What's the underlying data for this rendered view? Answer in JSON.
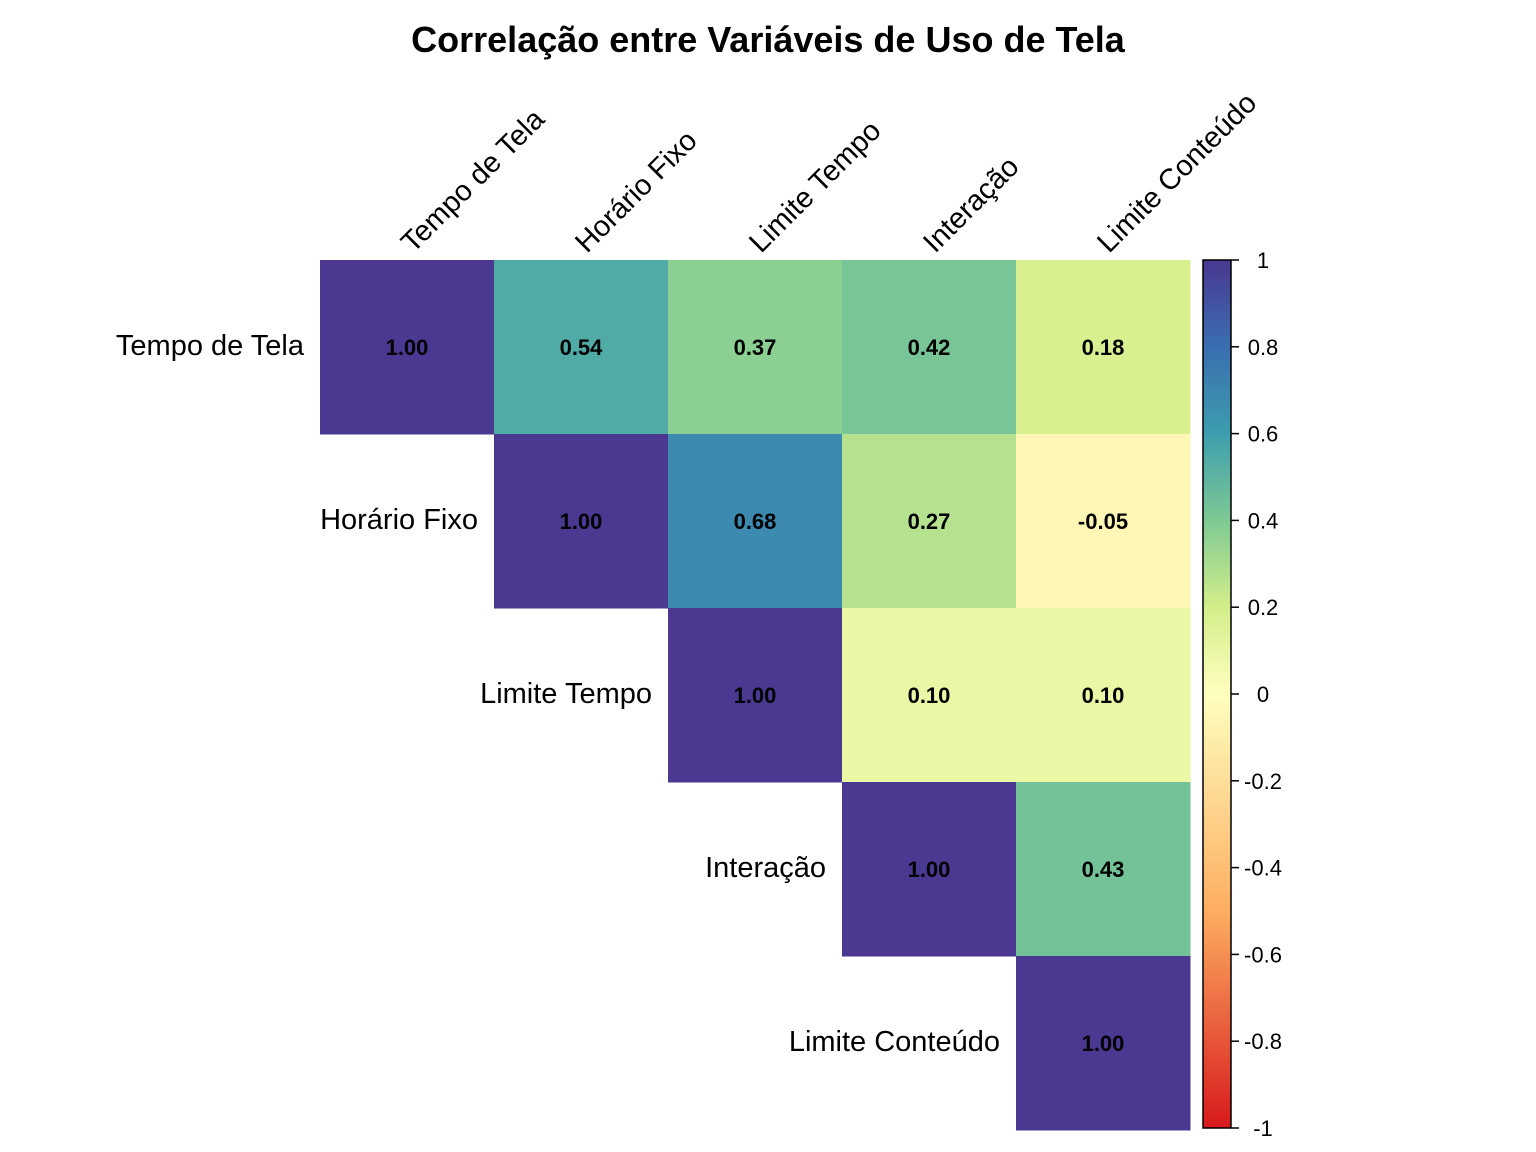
{
  "chart_data": {
    "type": "heatmap",
    "title": "Correlação entre Variáveis de Uso de Tela",
    "variables": [
      "Tempo de Tela",
      "Horário Fixo",
      "Limite Tempo",
      "Interação",
      "Limite Conteúdo"
    ],
    "layout": "upper-triangle",
    "matrix": [
      [
        1.0,
        0.54,
        0.37,
        0.42,
        0.18
      ],
      [
        0.54,
        1.0,
        0.68,
        0.27,
        -0.05
      ],
      [
        0.37,
        0.68,
        1.0,
        0.1,
        0.1
      ],
      [
        0.42,
        0.27,
        0.1,
        1.0,
        0.43
      ],
      [
        0.18,
        -0.05,
        0.1,
        0.43,
        1.0
      ]
    ],
    "cell_labels": [
      [
        "1.00",
        "0.54",
        "0.37",
        "0.42",
        "0.18"
      ],
      [
        "",
        "1.00",
        "0.68",
        "0.27",
        "-0.05"
      ],
      [
        "",
        "",
        "1.00",
        "0.10",
        "0.10"
      ],
      [
        "",
        "",
        "",
        "1.00",
        "0.43"
      ],
      [
        "",
        "",
        "",
        "",
        "1.00"
      ]
    ],
    "colorbar": {
      "range": [
        -1,
        1
      ],
      "ticks": [
        "1",
        "0.8",
        "0.6",
        "0.4",
        "0.2",
        "0",
        "-0.2",
        "-0.4",
        "-0.6",
        "-0.8",
        "-1"
      ],
      "tick_values": [
        1,
        0.8,
        0.6,
        0.4,
        0.2,
        0,
        -0.2,
        -0.4,
        -0.6,
        -0.8,
        -1
      ],
      "palette": "spectral",
      "stops": [
        {
          "v": -1.0,
          "color": "#d7191c"
        },
        {
          "v": -0.5,
          "color": "#fdae61"
        },
        {
          "v": 0.0,
          "color": "#ffffbf"
        },
        {
          "v": 0.2,
          "color": "#d4ee8a"
        },
        {
          "v": 0.4,
          "color": "#7ec994"
        },
        {
          "v": 0.6,
          "color": "#3d9dae"
        },
        {
          "v": 0.8,
          "color": "#3a6eb0"
        },
        {
          "v": 1.0,
          "color": "#4a3891"
        }
      ]
    }
  }
}
